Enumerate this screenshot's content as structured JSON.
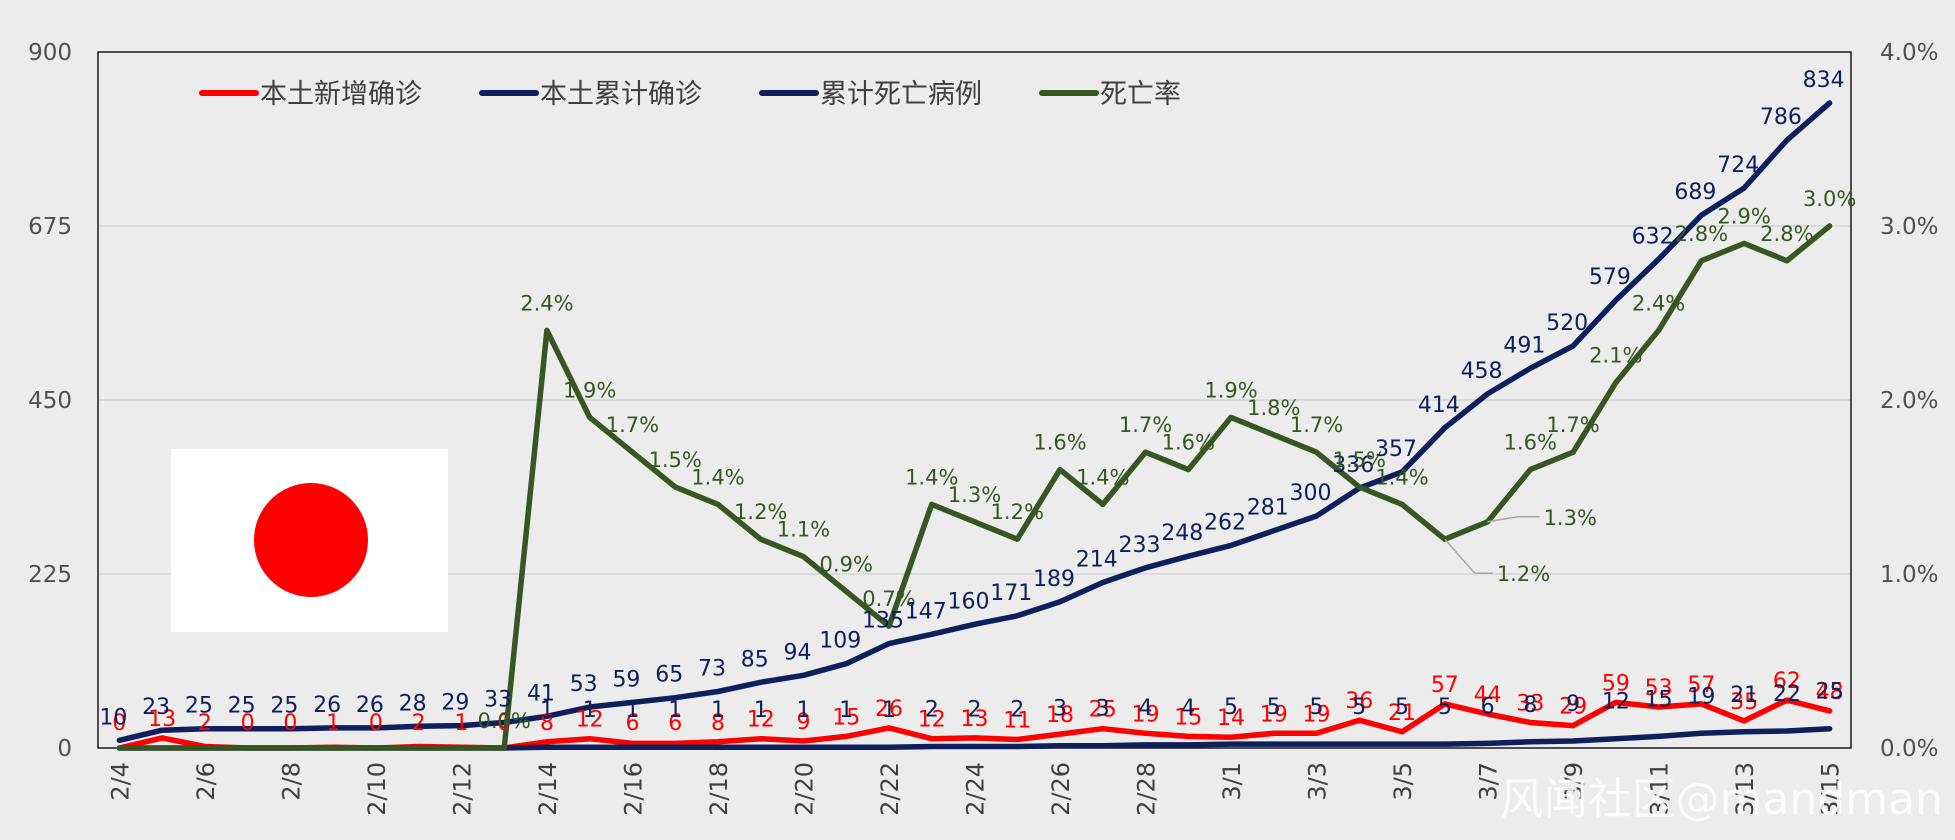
{
  "chart_data": {
    "type": "line",
    "title": "",
    "legend_position": "top-left",
    "categories": [
      "2/4",
      "2/5",
      "2/6",
      "2/7",
      "2/8",
      "2/9",
      "2/10",
      "2/11",
      "2/12",
      "2/13",
      "2/14",
      "2/15",
      "2/16",
      "2/17",
      "2/18",
      "2/19",
      "2/20",
      "2/21",
      "2/22",
      "2/23",
      "2/24",
      "2/25",
      "2/26",
      "2/27",
      "2/28",
      "2/29",
      "3/1",
      "3/2",
      "3/3",
      "3/4",
      "3/5",
      "3/6",
      "3/7",
      "3/8",
      "3/9",
      "3/10",
      "3/11",
      "3/12",
      "3/13",
      "3/14",
      "3/15"
    ],
    "x_tick_labels": [
      "2/4",
      "2/6",
      "2/8",
      "2/10",
      "2/12",
      "2/14",
      "2/16",
      "2/18",
      "2/20",
      "2/22",
      "2/24",
      "2/26",
      "2/28",
      "3/1",
      "3/3",
      "3/5",
      "3/7",
      "3/9",
      "3/11",
      "3/13",
      "3/15"
    ],
    "y_left": {
      "min": 0,
      "max": 900,
      "ticks": [
        "0",
        "225",
        "450",
        "675",
        "900"
      ]
    },
    "y_right": {
      "min": 0,
      "max": 0.04,
      "ticks": [
        "0.0%",
        "1.0%",
        "2.0%",
        "3.0%",
        "4.0%"
      ]
    },
    "series": [
      {
        "name": "本土新增确诊",
        "color": "#ff0000",
        "axis": "left",
        "values": [
          0,
          13,
          2,
          0,
          0,
          1,
          0,
          2,
          1,
          0,
          8,
          12,
          6,
          6,
          8,
          12,
          9,
          15,
          26,
          12,
          13,
          11,
          18,
          25,
          19,
          15,
          14,
          19,
          19,
          36,
          21,
          57,
          44,
          33,
          29,
          59,
          53,
          57,
          35,
          62,
          48
        ]
      },
      {
        "name": "本土累计确诊",
        "color": "#0f1f5c",
        "axis": "left",
        "values": [
          10,
          23,
          25,
          25,
          25,
          26,
          26,
          28,
          29,
          33,
          41,
          53,
          59,
          65,
          73,
          85,
          94,
          109,
          135,
          147,
          160,
          171,
          189,
          214,
          233,
          248,
          262,
          281,
          300,
          336,
          357,
          414,
          458,
          491,
          520,
          579,
          632,
          689,
          724,
          786,
          834
        ]
      },
      {
        "name": "累计死亡病例",
        "color": "#0f1f5c",
        "axis": "left",
        "values": [
          0,
          0,
          0,
          0,
          0,
          0,
          0,
          0,
          0,
          0,
          1,
          1,
          1,
          1,
          1,
          1,
          1,
          1,
          1,
          2,
          2,
          2,
          3,
          3,
          4,
          4,
          5,
          5,
          5,
          5,
          5,
          5,
          6,
          8,
          9,
          12,
          15,
          19,
          21,
          22,
          25
        ]
      },
      {
        "name": "死亡率",
        "color": "#375623",
        "axis": "right",
        "values": [
          0,
          0,
          0,
          0,
          0,
          0,
          0,
          0,
          0,
          0,
          0.024,
          0.019,
          0.017,
          0.015,
          0.014,
          0.012,
          0.011,
          0.009,
          0.007,
          0.014,
          0.013,
          0.012,
          0.016,
          0.014,
          0.017,
          0.016,
          0.019,
          0.018,
          0.017,
          0.015,
          0.014,
          0.012,
          0.013,
          0.016,
          0.017,
          0.021,
          0.024,
          0.028,
          0.029,
          0.028,
          0.03
        ]
      }
    ],
    "labels": {
      "new": [
        "0",
        "13",
        "2",
        "0",
        "0",
        "1",
        "0",
        "2",
        "1",
        "0",
        "8",
        "12",
        "6",
        "6",
        "8",
        "12",
        "9",
        "15",
        "26",
        "12",
        "13",
        "11",
        "18",
        "25",
        "19",
        "15",
        "14",
        "19",
        "19",
        "36",
        "21",
        "57",
        "44",
        "33",
        "29",
        "59",
        "53",
        "57",
        "35",
        "62",
        "48"
      ],
      "cumulative": [
        "10",
        "23",
        "25",
        "25",
        "25",
        "26",
        "26",
        "28",
        "29",
        "33",
        "41",
        "53",
        "59",
        "65",
        "73",
        "85",
        "94",
        "109",
        "135",
        "147",
        "160",
        "171",
        "189",
        "214",
        "233",
        "248",
        "262",
        "281",
        "300",
        "336",
        "357",
        "414",
        "458",
        "491",
        "520",
        "579",
        "632",
        "689",
        "724",
        "786",
        "834"
      ],
      "deaths": [
        "",
        "",
        "",
        "",
        "",
        "",
        "",
        "",
        "",
        "",
        "1",
        "1",
        "1",
        "1",
        "1",
        "1",
        "1",
        "1",
        "1",
        "2",
        "2",
        "2",
        "3",
        "3",
        "4",
        "4",
        "5",
        "5",
        "5",
        "5",
        "5",
        "5",
        "6",
        "8",
        "9",
        "12",
        "15",
        "19",
        "21",
        "22",
        "25"
      ],
      "rate": [
        "",
        "",
        "",
        "",
        "",
        "",
        "",
        "",
        "",
        "0.0%",
        "2.4%",
        "1.9%",
        "1.7%",
        "1.5%",
        "1.4%",
        "1.2%",
        "1.1%",
        "0.9%",
        "0.7%",
        "1.4%",
        "1.3%",
        "1.2%",
        "1.6%",
        "1.4%",
        "1.7%",
        "1.6%",
        "1.9%",
        "1.8%",
        "1.7%",
        "1.5%",
        "1.4%",
        "1.2%",
        "1.3%",
        "1.6%",
        "1.7%",
        "2.1%",
        "2.4%",
        "2.8%",
        "2.9%",
        "2.8%",
        "3.0%"
      ]
    }
  },
  "colors": {
    "background": "#ececec",
    "flag_red": "#ff0000",
    "flag_white": "#ffffff"
  },
  "watermark": "风闻社区@mandman"
}
